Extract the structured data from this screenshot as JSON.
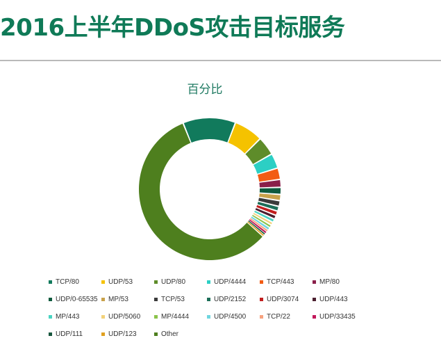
{
  "slide": {
    "title": "2016上半年DDoS攻击目标服务"
  },
  "chart_data": {
    "type": "pie",
    "donut": true,
    "title": "百分比",
    "legend_position": "bottom",
    "categories": [
      "TCP/80",
      "UDP/53",
      "UDP/80",
      "UDP/4444",
      "TCP/443",
      "MP/80",
      "UDP/0-65535",
      "MP/53",
      "TCP/53",
      "UDP/2152",
      "UDP/3074",
      "UDP/443",
      "MP/443",
      "UDP/5060",
      "MP/4444",
      "UDP/4500",
      "TCP/22",
      "UDP/33435",
      "UDP/111",
      "UDP/123",
      "Other"
    ],
    "values": [
      12.0,
      6.6,
      4.3,
      3.4,
      2.6,
      1.8,
      1.6,
      1.4,
      1.3,
      1.1,
      1.0,
      0.9,
      0.8,
      0.7,
      0.7,
      0.6,
      0.5,
      0.5,
      0.4,
      0.4,
      57.4
    ],
    "colors": [
      "#117a5c",
      "#f5c200",
      "#5e8c2a",
      "#2ccfc4",
      "#f25c14",
      "#8a1f4a",
      "#0f5a3e",
      "#c9a24b",
      "#3b3b3b",
      "#1c6e58",
      "#c21f1f",
      "#4b1f2f",
      "#49d4c2",
      "#f3d27a",
      "#8bc34a",
      "#6fd6df",
      "#f7a27f",
      "#c2185b",
      "#18573e",
      "#e0a020",
      "#4e7f1e"
    ]
  }
}
